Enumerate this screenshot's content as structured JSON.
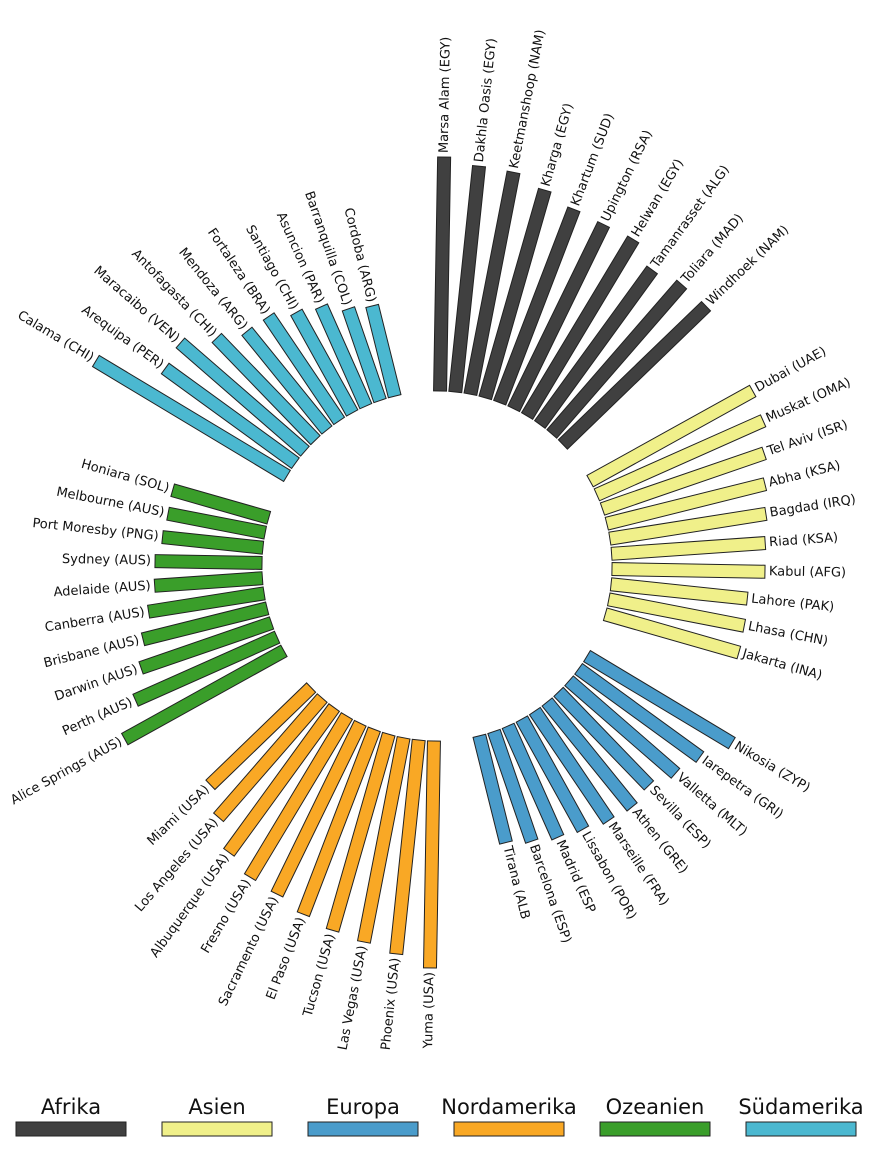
{
  "chart_data": {
    "type": "radial_bar",
    "series": [
      {
        "name": "Afrika",
        "color": "#404040",
        "categories": [
          "Marsa Alam (EGY)",
          "Dakhla Oasis (EGY)",
          "Keetmanshoop (NAM)",
          "Kharga (EGY)",
          "Khartum (SUD)",
          "Upington (RSA)",
          "Helwan (EGY)",
          "Tamanrasset (ALG)",
          "Toliara (MAD)",
          "Windhoek (NAM)"
        ],
        "values": [
          234,
          227,
          226,
          216,
          207,
          205,
          206,
          191,
          198,
          199
        ]
      },
      {
        "name": "Asien",
        "color": "#f0f08a",
        "categories": [
          "Dubai (UAE)",
          "Muskat (OMA)",
          "Tel Aviv (ISR)",
          "Abha (KSA)",
          "Bagdad (IRQ)",
          "Riad (KSA)",
          "Kabul (AFG)",
          "Lahore (PAK)",
          "Lhasa (CHN)",
          "Jakarta (INA)"
        ],
        "values": [
          186,
          182,
          171,
          163,
          158,
          154,
          153,
          137,
          138,
          139
        ]
      },
      {
        "name": "Europa",
        "color": "#4a9ccb",
        "categories": [
          "Nikosia (ZYP)",
          "Iarepetra (GRI)",
          "Valletta (MLT)",
          "Sevilla (ESP)",
          "Athen (GRE)",
          "Marseille (FRA)",
          "Lissabon (POR)",
          "Madrid (ESP",
          "Barcelona (ESP)",
          "Tirana (ALB"
        ],
        "values": [
          169,
          150,
          141,
          130,
          135,
          132,
          126,
          122,
          116,
          110
        ]
      },
      {
        "name": "Nordamerika",
        "color": "#f9a825",
        "categories": [
          "Yuma (USA)",
          "Phoenix (USA)",
          "Las Vegas (USA)",
          "Tucson (USA)",
          "El Paso (USA)",
          "Sacramento (USA)",
          "Fresno (USA)",
          "Albuquerque (USA)",
          "Los Angeles (USA)",
          "Miami (USA)"
        ],
        "values": [
          227,
          215,
          208,
          204,
          198,
          190,
          188,
          179,
          158,
          140
        ]
      },
      {
        "name": "Ozeanien",
        "color": "#3a9e2a",
        "categories": [
          "Alice Springs (AUS)",
          "Perth (AUS)",
          "Darwin (AUS)",
          "Brisbane (AUS)",
          "Canberra (AUS)",
          "Adelaide (AUS)",
          "Sydney (AUS)",
          "Port Moresby (PNG)",
          "Melbourne (AUS)",
          "Honiara (SOL)"
        ],
        "values": [
          182,
          155,
          138,
          128,
          117,
          108,
          107,
          101,
          99,
          100
        ]
      },
      {
        "name": "Südamerika",
        "color": "#4bb8d0",
        "categories": [
          "Calama (CHI)",
          "Arequipa (PER)",
          "Maracaibo (VEN)",
          "Antofagasta (CHI)",
          "Mendoza (ARG)",
          "Fortaleza (BRA)",
          "Santiago (CHI)",
          "Asuncion (PAR)",
          "Barranquilla (COL)",
          "Cordoba (ARG)"
        ],
        "values": [
          223,
          161,
          165,
          142,
          127,
          126,
          115,
          109,
          97,
          93
        ]
      }
    ]
  }
}
